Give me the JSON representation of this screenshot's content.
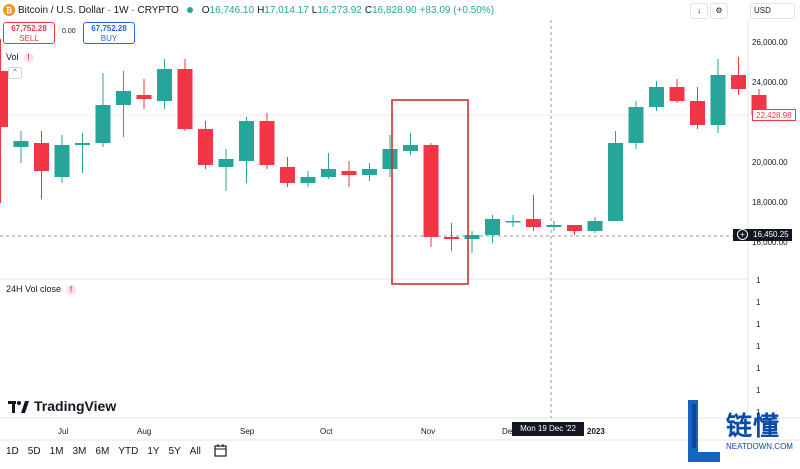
{
  "header": {
    "coin_glyph": "₿",
    "title": "Bitcoin / U.S. Dollar · 1W · CRYPTO",
    "o_label": "O",
    "o_value": "16,746.10",
    "h_label": "H",
    "h_value": "17,014.17",
    "l_label": "L",
    "l_value": "16,273.92",
    "c_label": "C",
    "c_value": "16,828.90",
    "change": "+83.09 (+0.50%)"
  },
  "trade": {
    "sell_price": "67,752.28",
    "sell_label": "SELL",
    "spread": "0.00",
    "buy_price": "67,752.28",
    "buy_label": "BUY"
  },
  "indicators": {
    "vol_label": "Vol",
    "vol24_label": "24H Vol close",
    "alert_glyph": "!",
    "collapse_glyph": "^"
  },
  "top_right": {
    "down_glyph": "↓",
    "settings_glyph": "⚙",
    "currency": "USD"
  },
  "price_axis": {
    "labels": [
      "26,000.00",
      "24,000.00",
      "20,000.00",
      "18,000.00",
      "16,000.00"
    ],
    "current_price_tag": "22,428.98",
    "crosshair_price_tag": "16,450.25"
  },
  "volume_axis": {
    "labels": [
      "1",
      "1",
      "1",
      "1",
      "1",
      "1",
      "1"
    ]
  },
  "time_axis": {
    "labels": [
      "Jul",
      "Aug",
      "Sep",
      "Oct",
      "Nov",
      "Dec",
      "2023"
    ],
    "crosshair_date": "Mon 19 Dec '22"
  },
  "brand": "TradingView",
  "timeframes": [
    "1D",
    "5D",
    "1M",
    "3M",
    "6M",
    "YTD",
    "1Y",
    "5Y",
    "All"
  ],
  "watermark": {
    "cn": "链懂",
    "en": "NEATDOWN.COM"
  },
  "colors": {
    "up": "#26a69a",
    "down": "#f23645",
    "highlight_box": "#d32f2f",
    "accent": "#2962ff"
  },
  "chart_data": {
    "type": "candlestick",
    "x_axis": [
      "Jul",
      "Aug",
      "Sep",
      "Oct",
      "Nov",
      "Dec",
      "2023"
    ],
    "ylim": [
      16000,
      26000
    ],
    "candles": [
      {
        "o": 24600,
        "h": 26200,
        "l": 18000,
        "c": 21800
      },
      {
        "o": 20800,
        "h": 21600,
        "l": 20000,
        "c": 21100
      },
      {
        "o": 21000,
        "h": 21600,
        "l": 18200,
        "c": 19600
      },
      {
        "o": 19300,
        "h": 21400,
        "l": 19000,
        "c": 20900
      },
      {
        "o": 20900,
        "h": 21500,
        "l": 19500,
        "c": 21000
      },
      {
        "o": 21000,
        "h": 24500,
        "l": 20800,
        "c": 22900
      },
      {
        "o": 22900,
        "h": 24600,
        "l": 21300,
        "c": 23600
      },
      {
        "o": 23400,
        "h": 24200,
        "l": 22700,
        "c": 23200
      },
      {
        "o": 23100,
        "h": 25200,
        "l": 22700,
        "c": 24700
      },
      {
        "o": 24700,
        "h": 25200,
        "l": 21600,
        "c": 21700
      },
      {
        "o": 21700,
        "h": 22100,
        "l": 19700,
        "c": 19900
      },
      {
        "o": 19800,
        "h": 20700,
        "l": 18600,
        "c": 20200
      },
      {
        "o": 20100,
        "h": 22300,
        "l": 19000,
        "c": 22100
      },
      {
        "o": 22100,
        "h": 22500,
        "l": 19700,
        "c": 19900
      },
      {
        "o": 19800,
        "h": 20300,
        "l": 18800,
        "c": 19000
      },
      {
        "o": 19000,
        "h": 19600,
        "l": 18800,
        "c": 19300
      },
      {
        "o": 19300,
        "h": 20500,
        "l": 19200,
        "c": 19700
      },
      {
        "o": 19600,
        "h": 20100,
        "l": 18800,
        "c": 19400
      },
      {
        "o": 19400,
        "h": 20000,
        "l": 19100,
        "c": 19700
      },
      {
        "o": 19700,
        "h": 21400,
        "l": 19300,
        "c": 20700
      },
      {
        "o": 20600,
        "h": 21500,
        "l": 20400,
        "c": 20900
      },
      {
        "o": 20900,
        "h": 21000,
        "l": 15800,
        "c": 16300
      },
      {
        "o": 16300,
        "h": 17000,
        "l": 15600,
        "c": 16200
      },
      {
        "o": 16200,
        "h": 16600,
        "l": 15500,
        "c": 16400
      },
      {
        "o": 16400,
        "h": 17400,
        "l": 16000,
        "c": 17200
      },
      {
        "o": 17100,
        "h": 17400,
        "l": 16800,
        "c": 17100
      },
      {
        "o": 17200,
        "h": 18400,
        "l": 16600,
        "c": 16800
      },
      {
        "o": 16800,
        "h": 17100,
        "l": 16600,
        "c": 16900
      },
      {
        "o": 16900,
        "h": 16900,
        "l": 16400,
        "c": 16600
      },
      {
        "o": 16600,
        "h": 17300,
        "l": 16500,
        "c": 17100
      },
      {
        "o": 17100,
        "h": 21600,
        "l": 17100,
        "c": 21000
      },
      {
        "o": 21000,
        "h": 23100,
        "l": 20700,
        "c": 22800
      },
      {
        "o": 22800,
        "h": 24100,
        "l": 22600,
        "c": 23800
      },
      {
        "o": 23800,
        "h": 24200,
        "l": 23000,
        "c": 23100
      },
      {
        "o": 23100,
        "h": 23800,
        "l": 21700,
        "c": 21900
      },
      {
        "o": 21900,
        "h": 25200,
        "l": 21500,
        "c": 24400
      },
      {
        "o": 24400,
        "h": 25300,
        "l": 23400,
        "c": 23700
      },
      {
        "o": 23400,
        "h": 23700,
        "l": 22200,
        "c": 22400
      }
    ]
  }
}
